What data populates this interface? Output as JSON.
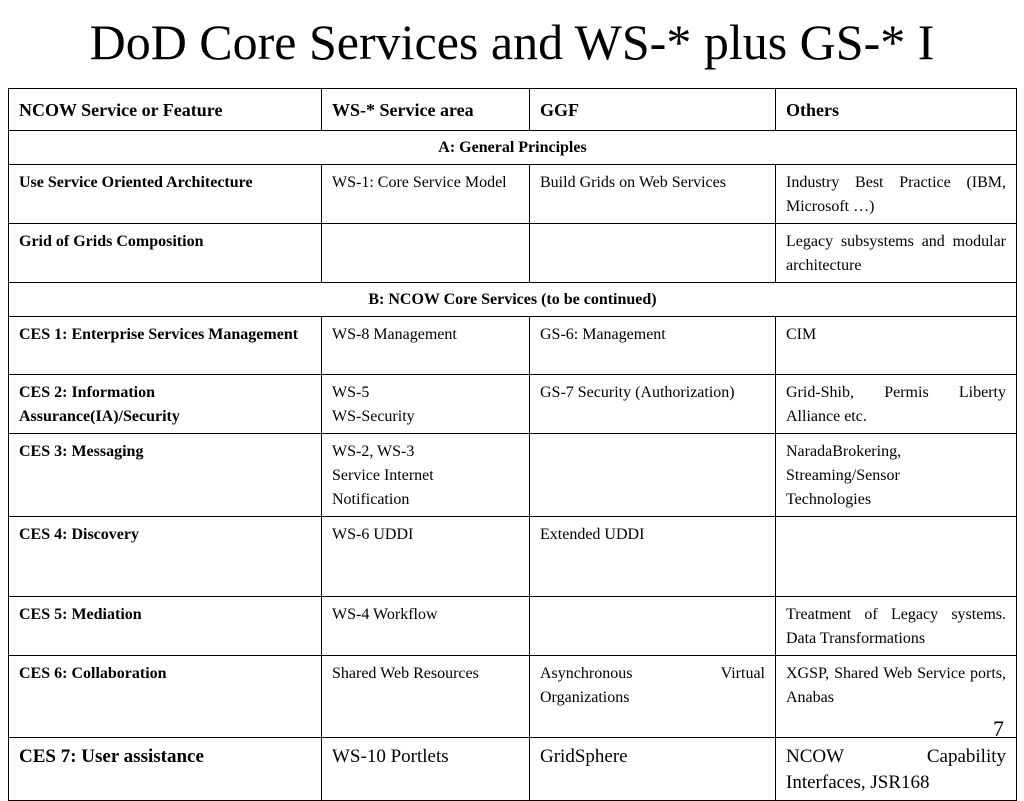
{
  "slide": {
    "title": "DoD Core Services and WS-* plus GS-* I",
    "page_number": "7"
  },
  "table": {
    "headers": [
      "NCOW Service or Feature",
      "WS-* Service area",
      "GGF",
      "Others"
    ],
    "sections": [
      {
        "heading": "A: General Principles",
        "rows": [
          {
            "feature": "Use Service Oriented Architecture",
            "ws": [
              "WS-1: Core Service Model"
            ],
            "ggf": [
              "Build Grids on Web Services"
            ],
            "others": [
              "Industry Best Practice (IBM, Microsoft …)"
            ]
          },
          {
            "feature": "Grid of Grids Composition",
            "ws": [
              ""
            ],
            "ggf": [
              ""
            ],
            "others": [
              "Legacy subsystems and modular architecture"
            ]
          }
        ]
      },
      {
        "heading": "B: NCOW Core Services (to be continued)",
        "rows": [
          {
            "feature": "CES 1: Enterprise Services Management",
            "ws": [
              "WS-8 Management"
            ],
            "ggf": [
              "GS-6: Management"
            ],
            "others": [
              "CIM"
            ]
          },
          {
            "feature": "CES 2: Information Assurance(IA)/Security",
            "ws": [
              "WS-5",
              "WS-Security"
            ],
            "ggf": [
              "GS-7 Security (Authorization)"
            ],
            "others": [
              "Grid-Shib, Permis Liberty Alliance etc."
            ]
          },
          {
            "feature": "CES 3: Messaging",
            "ws": [
              "WS-2, WS-3",
              "Service Internet",
              "Notification"
            ],
            "ggf": [
              ""
            ],
            "others": [
              "NaradaBrokering,",
              "Streaming/Sensor",
              "Technologies"
            ]
          },
          {
            "feature": "CES 4: Discovery",
            "ws": [
              "WS-6 UDDI"
            ],
            "ggf": [
              "Extended UDDI"
            ],
            "others": [
              ""
            ]
          },
          {
            "feature": "CES 5: Mediation",
            "ws": [
              "WS-4 Workflow"
            ],
            "ggf": [
              ""
            ],
            "others": [
              "Treatment of Legacy systems. Data Transformations"
            ]
          },
          {
            "feature": "CES 6: Collaboration",
            "ws": [
              "Shared Web Resources"
            ],
            "ggf": [
              "Asynchronous Virtual Organizations"
            ],
            "others": [
              "XGSP, Shared Web Service ports, Anabas"
            ]
          },
          {
            "feature": "CES 7: User assistance",
            "ws": [
              "WS-10 Portlets"
            ],
            "ggf": [
              "GridSphere"
            ],
            "others": [
              "NCOW Capability Interfaces, JSR168"
            ]
          }
        ]
      }
    ]
  }
}
